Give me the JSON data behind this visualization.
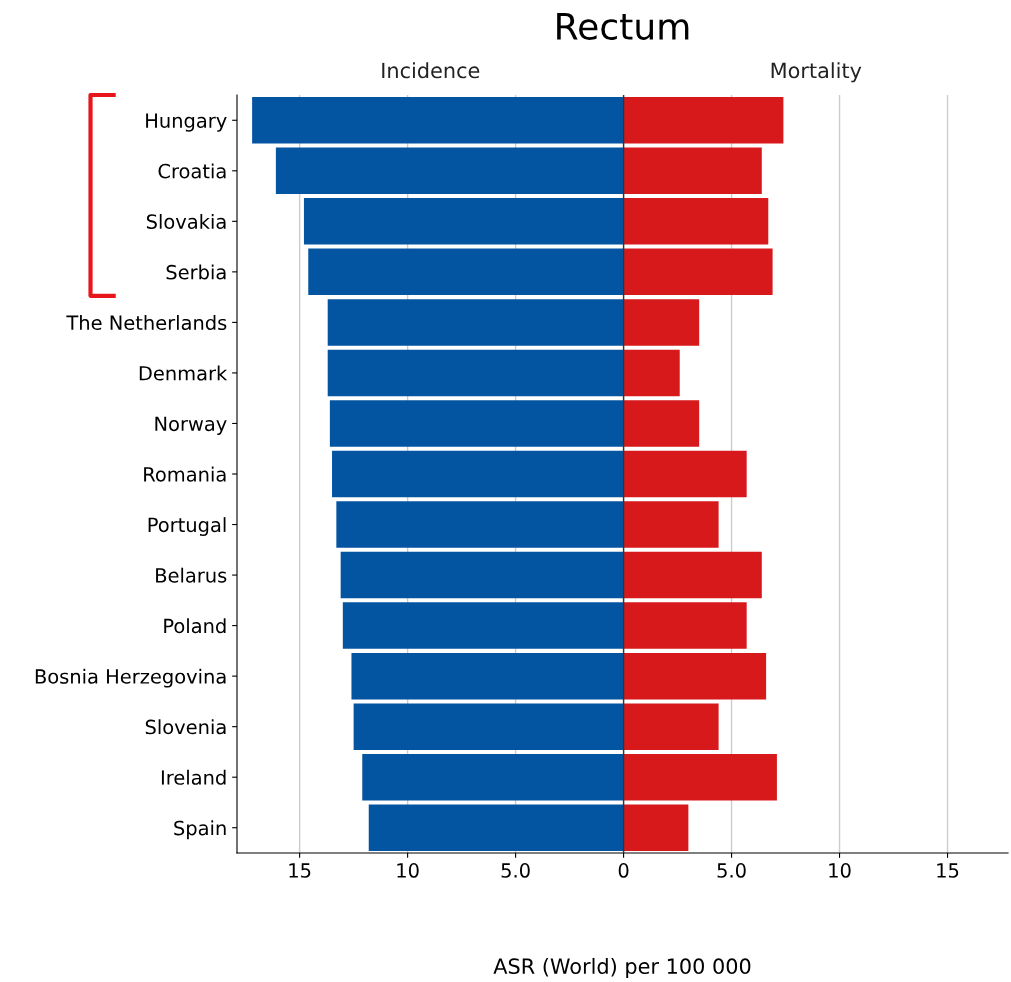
{
  "chart_data": {
    "type": "bar",
    "orientation": "horizontal",
    "title": "Rectum",
    "xlabel": "ASR (World) per 100 000",
    "categories": [
      "Hungary",
      "Croatia",
      "Slovakia",
      "Serbia",
      "The Netherlands",
      "Denmark",
      "Norway",
      "Romania",
      "Portugal",
      "Belarus",
      "Poland",
      "Bosnia Herzegovina",
      "Slovenia",
      "Ireland",
      "Spain"
    ],
    "series": [
      {
        "name": "Incidence",
        "color": "#0455a1",
        "values": [
          -17.2,
          -16.1,
          -14.8,
          -14.6,
          -13.7,
          -13.7,
          -13.6,
          -13.5,
          -13.3,
          -13.1,
          -13.0,
          -12.6,
          -12.5,
          -12.1,
          -11.8
        ]
      },
      {
        "name": "Mortality",
        "color": "#d7191c",
        "values": [
          7.4,
          6.4,
          6.7,
          6.9,
          3.5,
          2.6,
          3.5,
          5.7,
          4.4,
          6.4,
          5.7,
          6.6,
          4.4,
          7.1,
          3.0
        ]
      }
    ],
    "xlim": [
      -17.9,
      17.8
    ],
    "xticks": [
      {
        "value": -15,
        "label": "15"
      },
      {
        "value": -10,
        "label": "10"
      },
      {
        "value": -5,
        "label": "5.0"
      },
      0,
      {
        "value": 5,
        "label": "5.0"
      },
      10,
      15
    ],
    "grid": "x",
    "legend": false,
    "stacked": true,
    "ref_lines": [
      {
        "axis": "x",
        "value": 0,
        "color": "#333333"
      }
    ]
  }
}
